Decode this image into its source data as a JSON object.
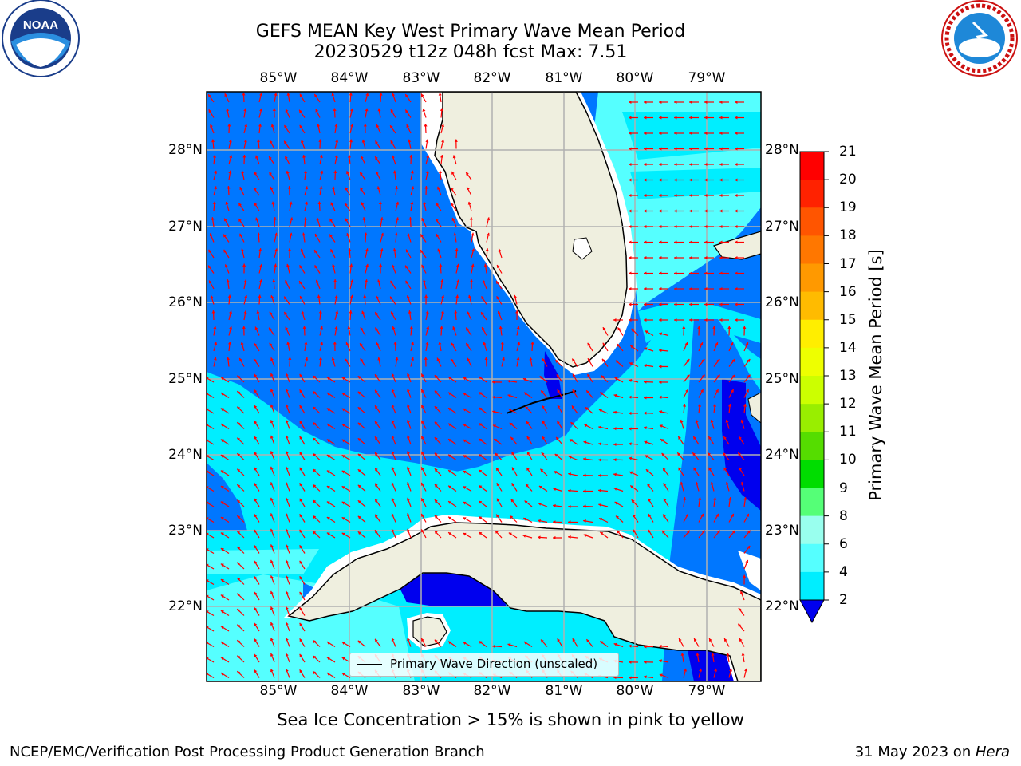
{
  "header": {
    "title_line1": "GEFS MEAN Key West Primary Wave Mean Period",
    "title_line2": "20230529 t12z 048h fcst   Max: 7.51"
  },
  "logos": {
    "left": "noara-logo",
    "right": "nws-logo"
  },
  "axes": {
    "lon_ticks": [
      "85°W",
      "84°W",
      "83°W",
      "82°W",
      "81°W",
      "80°W",
      "79°W"
    ],
    "lat_ticks": [
      "28°N",
      "27°N",
      "26°N",
      "25°N",
      "24°N",
      "23°N",
      "22°N"
    ]
  },
  "colorbar": {
    "label": "Primary Wave Mean Period [s]",
    "ticks": [
      "21",
      "20",
      "19",
      "18",
      "17",
      "16",
      "15",
      "14",
      "13",
      "12",
      "11",
      "10",
      "9",
      "8",
      "6",
      "4",
      "2"
    ],
    "colors": [
      "#ff0000",
      "#ff2200",
      "#ff5500",
      "#ff7700",
      "#ff9900",
      "#ffbb00",
      "#ffee00",
      "#eeff00",
      "#ccff00",
      "#99ee00",
      "#55dd00",
      "#00dd00",
      "#55ff77",
      "#99ffee",
      "#55ffff",
      "#00eeff",
      "#0077ff"
    ],
    "under_color": "#0000ee"
  },
  "legend": {
    "text": "Primary Wave Direction (unscaled)"
  },
  "note": "Sea Ice Concentration > 15% is shown in pink to yellow",
  "footer": {
    "left": "NCEP/EMC/Verification Post Processing Product Generation Branch",
    "date": "31 May 2023 on ",
    "host": "Hera"
  },
  "colors": {
    "land": "#efefdf",
    "sea_2_4": "#0077ff",
    "sea_4_6": "#00eeff",
    "sea_6_8": "#55ffff",
    "sea_lt2": "#0000ee",
    "arrow": "#ff0000"
  }
}
